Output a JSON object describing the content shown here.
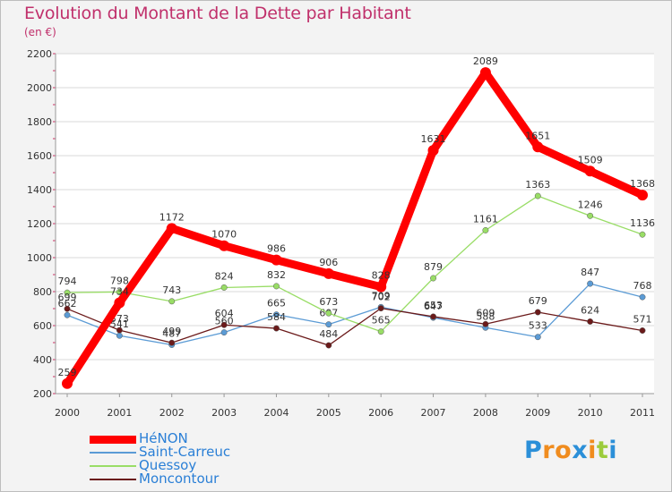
{
  "title": "Evolution du Montant de la Dette par Habitant",
  "subtitle": "(en €)",
  "brand": {
    "text": "Proxiti",
    "letters": [
      "P",
      "r",
      "o",
      "x",
      "i",
      "t",
      "i"
    ],
    "colors": [
      "#2b8fd8",
      "#f08c1e",
      "#f08c1e",
      "#2b8fd8",
      "#f08c1e",
      "#9ccc3c",
      "#2b8fd8"
    ]
  },
  "chart_data": {
    "type": "line",
    "title": "Evolution du Montant de la Dette par Habitant",
    "subtitle": "(en €)",
    "x": [
      "2000",
      "2001",
      "2002",
      "2003",
      "2004",
      "2005",
      "2006",
      "2007",
      "2008",
      "2009",
      "2010",
      "2011"
    ],
    "y_ticks": [
      200,
      400,
      600,
      800,
      1000,
      1200,
      1400,
      1600,
      1800,
      2000,
      2200
    ],
    "ylim": [
      200,
      2200
    ],
    "grid": "horizontal",
    "legend_position": "bottom-left",
    "series": [
      {
        "name": "HéNON",
        "color": "#ff0000",
        "values": [
          259,
          734,
          1172,
          1070,
          986,
          906,
          828,
          1631,
          2089,
          1651,
          1509,
          1368
        ]
      },
      {
        "name": "Saint-Carreuc",
        "color": "#5b9bd5",
        "values": [
          662,
          541,
          487,
          560,
          665,
          607,
          709,
          647,
          588,
          533,
          847,
          768
        ]
      },
      {
        "name": "Quessoy",
        "color": "#99dd66",
        "values": [
          794,
          798,
          743,
          824,
          832,
          673,
          565,
          879,
          1161,
          1363,
          1246,
          1136
        ]
      },
      {
        "name": "Moncontour",
        "color": "#6b1a1a",
        "values": [
          699,
          573,
          499,
          604,
          584,
          484,
          702,
          653,
          609,
          679,
          624,
          571
        ]
      }
    ]
  }
}
